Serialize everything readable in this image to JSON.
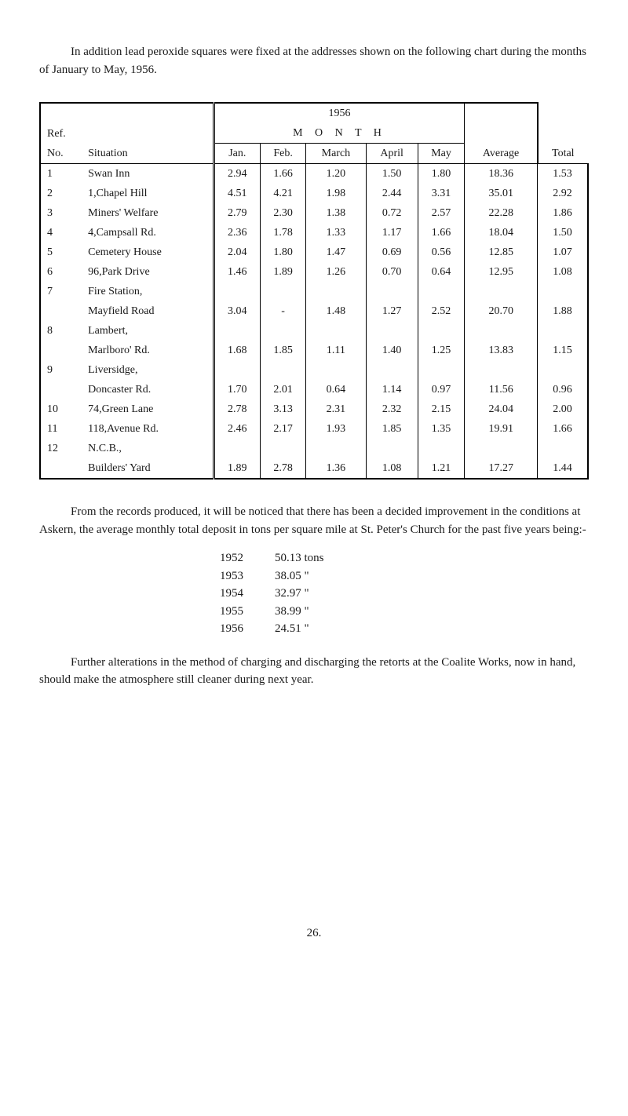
{
  "intro": "In addition lead peroxide squares were fixed at the addresses shown on the following chart during the months of January to May, 1956.",
  "table": {
    "year_heading": "1956",
    "month_heading": "M O N T H",
    "ref_label": "Ref.",
    "columns": {
      "no": "No.",
      "situation": "Situation",
      "jan": "Jan.",
      "feb": "Feb.",
      "march": "March",
      "april": "April",
      "may": "May",
      "total": "Total",
      "average": "Average"
    },
    "rows": [
      {
        "no": "1",
        "situation": "Swan Inn",
        "jan": "2.94",
        "feb": "1.66",
        "march": "1.20",
        "april": "1.50",
        "may": "1.80",
        "total": "18.36",
        "avg": "1.53"
      },
      {
        "no": "2",
        "situation": "1,Chapel Hill",
        "jan": "4.51",
        "feb": "4.21",
        "march": "1.98",
        "april": "2.44",
        "may": "3.31",
        "total": "35.01",
        "avg": "2.92"
      },
      {
        "no": "3",
        "situation": "Miners' Welfare",
        "jan": "2.79",
        "feb": "2.30",
        "march": "1.38",
        "april": "0.72",
        "may": "2.57",
        "total": "22.28",
        "avg": "1.86"
      },
      {
        "no": "4",
        "situation": "4,Campsall Rd.",
        "jan": "2.36",
        "feb": "1.78",
        "march": "1.33",
        "april": "1.17",
        "may": "1.66",
        "total": "18.04",
        "avg": "1.50"
      },
      {
        "no": "5",
        "situation": "Cemetery House",
        "jan": "2.04",
        "feb": "1.80",
        "march": "1.47",
        "april": "0.69",
        "may": "0.56",
        "total": "12.85",
        "avg": "1.07"
      },
      {
        "no": "6",
        "situation": "96,Park Drive",
        "jan": "1.46",
        "feb": "1.89",
        "march": "1.26",
        "april": "0.70",
        "may": "0.64",
        "total": "12.95",
        "avg": "1.08"
      },
      {
        "no": "7",
        "situation": "Fire Station,",
        "jan": "",
        "feb": "",
        "march": "",
        "april": "",
        "may": "",
        "total": "",
        "avg": ""
      },
      {
        "no": "",
        "situation": "Mayfield Road",
        "jan": "3.04",
        "feb": "-",
        "march": "1.48",
        "april": "1.27",
        "may": "2.52",
        "total": "20.70",
        "avg": "1.88"
      },
      {
        "no": "8",
        "situation": "Lambert,",
        "jan": "",
        "feb": "",
        "march": "",
        "april": "",
        "may": "",
        "total": "",
        "avg": ""
      },
      {
        "no": "",
        "situation": "Marlboro' Rd.",
        "jan": "1.68",
        "feb": "1.85",
        "march": "1.11",
        "april": "1.40",
        "may": "1.25",
        "total": "13.83",
        "avg": "1.15"
      },
      {
        "no": "9",
        "situation": "Liversidge,",
        "jan": "",
        "feb": "",
        "march": "",
        "april": "",
        "may": "",
        "total": "",
        "avg": ""
      },
      {
        "no": "",
        "situation": "Doncaster Rd.",
        "jan": "1.70",
        "feb": "2.01",
        "march": "0.64",
        "april": "1.14",
        "may": "0.97",
        "total": "11.56",
        "avg": "0.96"
      },
      {
        "no": "10",
        "situation": "74,Green Lane",
        "jan": "2.78",
        "feb": "3.13",
        "march": "2.31",
        "april": "2.32",
        "may": "2.15",
        "total": "24.04",
        "avg": "2.00"
      },
      {
        "no": "11",
        "situation": "118,Avenue Rd.",
        "jan": "2.46",
        "feb": "2.17",
        "march": "1.93",
        "april": "1.85",
        "may": "1.35",
        "total": "19.91",
        "avg": "1.66"
      },
      {
        "no": "12",
        "situation": "N.C.B.,",
        "jan": "",
        "feb": "",
        "march": "",
        "april": "",
        "may": "",
        "total": "",
        "avg": ""
      },
      {
        "no": "",
        "situation": "Builders' Yard",
        "jan": "1.89",
        "feb": "2.78",
        "march": "1.36",
        "april": "1.08",
        "may": "1.21",
        "total": "17.27",
        "avg": "1.44"
      }
    ]
  },
  "para2": "From the records produced, it will be noticed that there has been a decided improvement in the conditions at Askern, the average monthly total deposit in tons per square mile at St. Peter's Church for the past five years being:-",
  "yearly": [
    {
      "year": "1952",
      "value": "50.13 tons"
    },
    {
      "year": "1953",
      "value": "38.05  \""
    },
    {
      "year": "1954",
      "value": "32.97  \""
    },
    {
      "year": "1955",
      "value": "38.99  \""
    },
    {
      "year": "1956",
      "value": "24.51  \""
    }
  ],
  "para3": "Further alterations in the method of charging and discharging the retorts at the Coalite Works, now in hand, should make the atmosphere still cleaner during next year.",
  "pagenum": "26."
}
